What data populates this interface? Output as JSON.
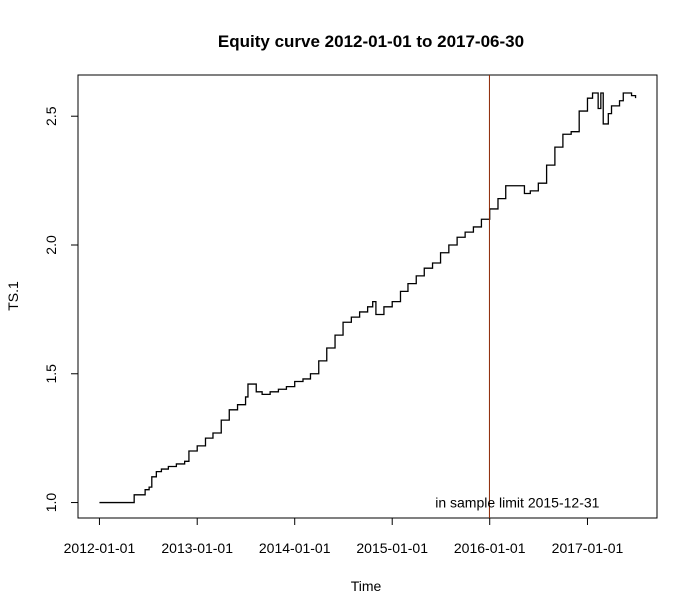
{
  "chart_data": {
    "type": "line",
    "title": "Equity curve 2012-01-01 to 2017-06-30",
    "xlabel": "Time",
    "ylabel": "TS.1",
    "xlim": [
      "2012-01-01",
      "2017-06-30"
    ],
    "ylim": [
      0.94,
      2.66
    ],
    "x_ticks": [
      "2012-01-01",
      "2013-01-01",
      "2014-01-01",
      "2015-01-01",
      "2016-01-01",
      "2017-01-01"
    ],
    "y_ticks": [
      "1.0",
      "1.5",
      "2.0",
      "2.5"
    ],
    "grid": false,
    "legend": "none",
    "series": [
      {
        "line_color": "#000000",
        "step": true,
        "points": [
          [
            "2012-01-01",
            1.0
          ],
          [
            "2012-05-01",
            1.0
          ],
          [
            "2012-05-10",
            1.03
          ],
          [
            "2012-06-15",
            1.03
          ],
          [
            "2012-06-20",
            1.05
          ],
          [
            "2012-07-05",
            1.06
          ],
          [
            "2012-07-15",
            1.1
          ],
          [
            "2012-08-01",
            1.12
          ],
          [
            "2012-08-20",
            1.13
          ],
          [
            "2012-09-15",
            1.14
          ],
          [
            "2012-10-15",
            1.15
          ],
          [
            "2012-11-15",
            1.16
          ],
          [
            "2012-12-01",
            1.2
          ],
          [
            "2013-01-01",
            1.22
          ],
          [
            "2013-02-01",
            1.25
          ],
          [
            "2013-03-01",
            1.27
          ],
          [
            "2013-04-01",
            1.32
          ],
          [
            "2013-05-01",
            1.36
          ],
          [
            "2013-06-01",
            1.38
          ],
          [
            "2013-07-01",
            1.41
          ],
          [
            "2013-07-10",
            1.46
          ],
          [
            "2013-08-01",
            1.46
          ],
          [
            "2013-08-10",
            1.43
          ],
          [
            "2013-09-01",
            1.42
          ],
          [
            "2013-10-01",
            1.43
          ],
          [
            "2013-11-01",
            1.44
          ],
          [
            "2013-12-01",
            1.45
          ],
          [
            "2014-01-01",
            1.47
          ],
          [
            "2014-02-01",
            1.48
          ],
          [
            "2014-03-01",
            1.5
          ],
          [
            "2014-04-01",
            1.55
          ],
          [
            "2014-05-01",
            1.6
          ],
          [
            "2014-06-01",
            1.65
          ],
          [
            "2014-07-01",
            1.7
          ],
          [
            "2014-08-01",
            1.72
          ],
          [
            "2014-09-01",
            1.74
          ],
          [
            "2014-10-01",
            1.76
          ],
          [
            "2014-10-20",
            1.78
          ],
          [
            "2014-11-01",
            1.73
          ],
          [
            "2014-12-01",
            1.76
          ],
          [
            "2015-01-01",
            1.78
          ],
          [
            "2015-02-01",
            1.82
          ],
          [
            "2015-03-01",
            1.85
          ],
          [
            "2015-04-01",
            1.88
          ],
          [
            "2015-05-01",
            1.91
          ],
          [
            "2015-06-01",
            1.93
          ],
          [
            "2015-07-01",
            1.97
          ],
          [
            "2015-08-01",
            2.0
          ],
          [
            "2015-09-01",
            2.03
          ],
          [
            "2015-10-01",
            2.05
          ],
          [
            "2015-11-01",
            2.07
          ],
          [
            "2015-12-01",
            2.1
          ],
          [
            "2016-01-01",
            2.14
          ],
          [
            "2016-02-01",
            2.18
          ],
          [
            "2016-03-01",
            2.23
          ],
          [
            "2016-05-01",
            2.23
          ],
          [
            "2016-05-10",
            2.2
          ],
          [
            "2016-06-01",
            2.21
          ],
          [
            "2016-07-01",
            2.24
          ],
          [
            "2016-08-01",
            2.31
          ],
          [
            "2016-09-01",
            2.38
          ],
          [
            "2016-10-01",
            2.43
          ],
          [
            "2016-11-01",
            2.44
          ],
          [
            "2016-12-01",
            2.52
          ],
          [
            "2017-01-01",
            2.57
          ],
          [
            "2017-01-20",
            2.59
          ],
          [
            "2017-02-10",
            2.53
          ],
          [
            "2017-02-20",
            2.59
          ],
          [
            "2017-03-01",
            2.47
          ],
          [
            "2017-03-20",
            2.51
          ],
          [
            "2017-04-01",
            2.54
          ],
          [
            "2017-05-01",
            2.56
          ],
          [
            "2017-05-15",
            2.59
          ],
          [
            "2017-06-15",
            2.58
          ],
          [
            "2017-06-30",
            2.57
          ]
        ]
      }
    ],
    "annotations": [
      {
        "type": "vline",
        "x": "2015-12-31",
        "color": "#8b2500"
      },
      {
        "type": "text",
        "x": "2015-12-31",
        "y": 1.0,
        "text": "in sample limit 2015-12-31",
        "anchor": "right"
      }
    ]
  }
}
